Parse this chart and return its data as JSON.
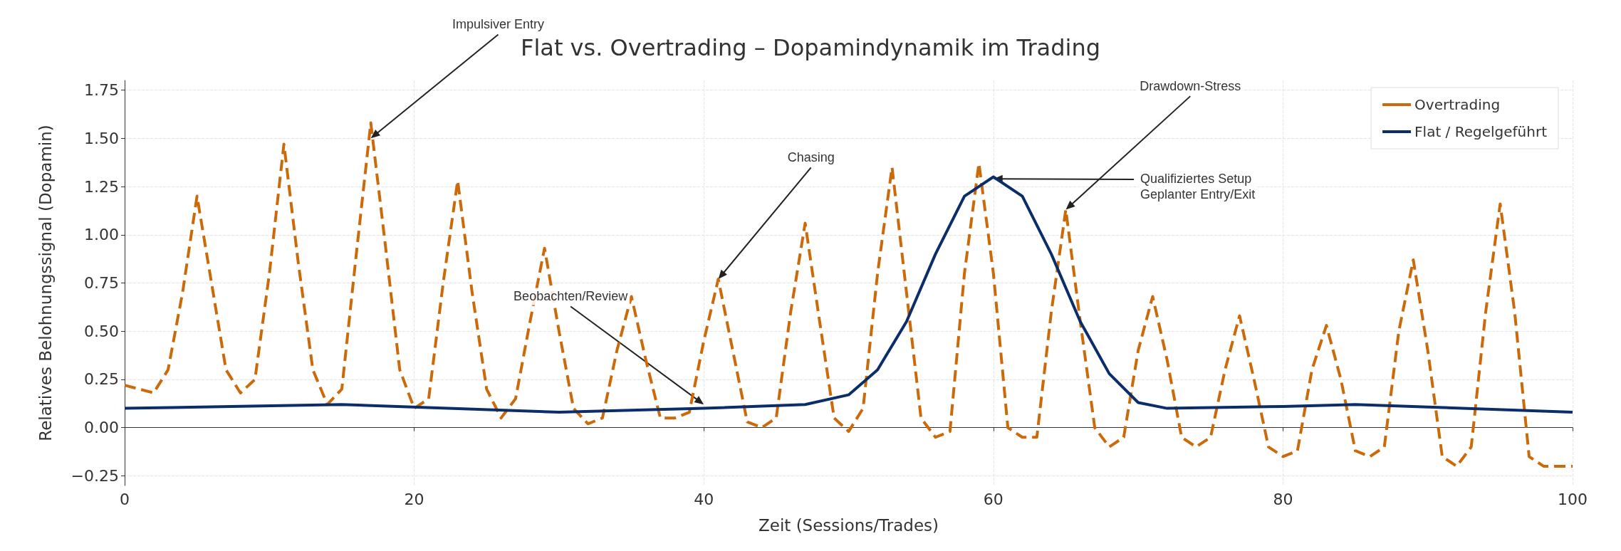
{
  "chart_data": {
    "type": "line",
    "title": "Flat vs. Overtrading – Dopamindynamik im Trading",
    "xlabel": "Zeit (Sessions/Trades)",
    "ylabel": "Relatives Belohnungssignal (Dopamin)",
    "x": [
      0,
      1,
      2,
      3,
      4,
      5,
      6,
      7,
      8,
      9,
      10,
      11,
      12,
      13,
      14,
      15,
      16,
      17,
      18,
      19,
      20,
      21,
      22,
      23,
      24,
      25,
      26,
      27,
      28,
      29,
      30,
      31,
      32,
      33,
      34,
      35,
      36,
      37,
      38,
      39,
      40,
      41,
      42,
      43,
      44,
      45,
      46,
      47,
      48,
      49,
      50,
      51,
      52,
      53,
      54,
      55,
      56,
      57,
      58,
      59,
      60,
      61,
      62,
      63,
      64,
      65,
      66,
      67,
      68,
      69,
      70,
      71,
      72,
      73,
      74,
      75,
      76,
      77,
      78,
      79,
      80,
      81,
      82,
      83,
      84,
      85,
      86,
      87,
      88,
      89,
      90,
      91,
      92,
      93,
      94,
      95,
      96,
      97,
      98,
      99,
      100
    ],
    "series": [
      {
        "name": "Overtrading",
        "color": "#cc6a0a",
        "line_style": "dashed",
        "values": [
          0.22,
          0.2,
          0.18,
          0.3,
          0.7,
          1.2,
          0.75,
          0.3,
          0.18,
          0.25,
          0.8,
          1.47,
          0.85,
          0.3,
          0.12,
          0.2,
          0.9,
          1.58,
          0.95,
          0.3,
          0.1,
          0.15,
          0.75,
          1.28,
          0.7,
          0.2,
          0.05,
          0.15,
          0.55,
          0.93,
          0.5,
          0.1,
          0.02,
          0.05,
          0.4,
          0.68,
          0.35,
          0.05,
          0.05,
          0.08,
          0.45,
          0.77,
          0.4,
          0.03,
          0.0,
          0.05,
          0.6,
          1.06,
          0.55,
          0.05,
          -0.02,
          0.1,
          0.8,
          1.35,
          0.7,
          0.05,
          -0.05,
          -0.02,
          0.8,
          1.37,
          0.8,
          0.0,
          -0.05,
          -0.05,
          0.6,
          1.13,
          0.55,
          0.0,
          -0.1,
          -0.05,
          0.4,
          0.68,
          0.35,
          -0.05,
          -0.1,
          -0.05,
          0.3,
          0.58,
          0.25,
          -0.1,
          -0.15,
          -0.12,
          0.3,
          0.53,
          0.25,
          -0.12,
          -0.15,
          -0.1,
          0.5,
          0.87,
          0.4,
          -0.15,
          -0.2,
          -0.1,
          0.6,
          1.16,
          0.6,
          -0.15,
          -0.2,
          -0.2,
          -0.2
        ]
      },
      {
        "name": "Flat / Regelgeführt",
        "color": "#0b2e6b",
        "line_style": "solid",
        "x": [
          0,
          15,
          30,
          40,
          47,
          50,
          52,
          54,
          56,
          58,
          60,
          62,
          64,
          66,
          68,
          70,
          72,
          80,
          85,
          100
        ],
        "values": [
          0.1,
          0.12,
          0.08,
          0.1,
          0.12,
          0.17,
          0.3,
          0.55,
          0.9,
          1.2,
          1.3,
          1.2,
          0.9,
          0.55,
          0.28,
          0.13,
          0.1,
          0.11,
          0.12,
          0.08
        ]
      }
    ],
    "xlim": [
      0,
      100
    ],
    "xticks": [
      0,
      20,
      40,
      60,
      80,
      100
    ],
    "ylim": [
      -0.3,
      1.8
    ],
    "yticks": [
      {
        "value": -0.25,
        "label": "−0.25"
      },
      {
        "value": 0,
        "label": "0.00"
      },
      {
        "value": 0.25,
        "label": "0.25"
      },
      {
        "value": 0.5,
        "label": "0.50"
      },
      {
        "value": 0.75,
        "label": "0.75"
      },
      {
        "value": 1,
        "label": "1.00"
      },
      {
        "value": 1.25,
        "label": "1.25"
      },
      {
        "value": 1.5,
        "label": "1.50"
      },
      {
        "value": 1.75,
        "label": "1.75"
      }
    ],
    "grid": true,
    "legend": "top right",
    "marker": "none",
    "annotations": [
      {
        "text": "Impulsiver Entry",
        "x": 17,
        "y": 1.5
      },
      {
        "text": "Chasing",
        "x": 41,
        "y": 0.77
      },
      {
        "text": "Beobachten/Review",
        "x": 40,
        "y": 0.12
      },
      {
        "text": "Drawdown-Stress",
        "x": 65,
        "y": 1.13
      },
      {
        "text": "Qualifiziertes Setup\nGeplanter Entry/Exit",
        "x": 60,
        "y": 1.29
      }
    ]
  }
}
